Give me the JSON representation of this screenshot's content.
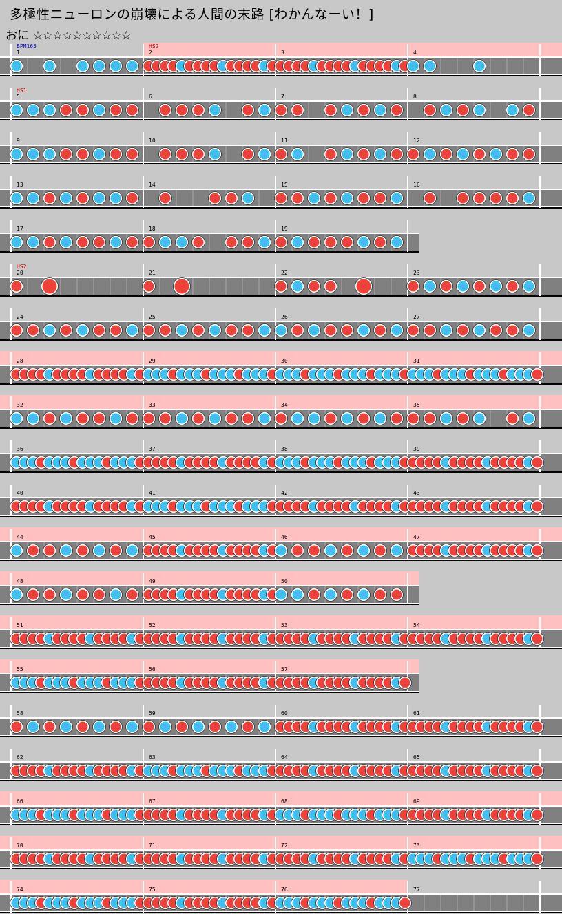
{
  "song": {
    "title": "多極性ニューロンの崩壊による人間の末路 [わかんなーい！]",
    "course": "おに",
    "stars": "☆☆☆☆☆☆☆☆☆☆"
  },
  "colors": {
    "background": "#c8c8c8",
    "lane": "#808080",
    "gogo": "#ffc0c0",
    "don": "#f0403a",
    "ka": "#40c0f0",
    "barline": "#ffffff",
    "bpm_label": "#0000c0",
    "hs_label": "#c00000"
  },
  "chart_data": {
    "type": "taiko-score",
    "rows": [
      {
        "measures": [
          1,
          2,
          3,
          4
        ],
        "gogo": [
          1,
          2,
          3
        ],
        "labels": [
          {
            "m": 0,
            "t": "BPM165",
            "k": "bpm"
          },
          {
            "m": 1,
            "t": "HS2",
            "k": "hs"
          }
        ],
        "notes": [
          [
            "k",
            "",
            "k",
            "",
            "k",
            "k",
            "k",
            "k"
          ],
          [
            "d16"
          ],
          [
            "d16"
          ],
          [
            "k16",
            "k",
            "_",
            "_",
            "k",
            "_",
            "_",
            "_"
          ]
        ]
      },
      {
        "measures": [
          5,
          6,
          7,
          8
        ],
        "gogo": [],
        "labels": [
          {
            "m": 0,
            "t": "HS1",
            "k": "hs"
          }
        ],
        "notes": [
          [
            "k",
            "k",
            "k",
            "d",
            "d",
            "k",
            "d",
            "d"
          ],
          [
            "",
            "d",
            "d",
            "d",
            "k",
            "",
            "d",
            "k"
          ],
          [
            "d",
            "d",
            "",
            "d",
            "k",
            "d",
            "k",
            "d"
          ],
          [
            "",
            "d",
            "k",
            "d",
            "k",
            "",
            "k",
            "d"
          ]
        ]
      },
      {
        "measures": [
          9,
          10,
          11,
          12
        ],
        "gogo": [],
        "labels": [],
        "notes": [
          [
            "k",
            "k",
            "k",
            "d",
            "d",
            "k",
            "d",
            "d"
          ],
          [
            "",
            "d",
            "d",
            "d",
            "k",
            "",
            "d",
            "k"
          ],
          [
            "d",
            "k",
            "",
            "d",
            "k",
            "d",
            "k",
            "d"
          ],
          [
            "d",
            "k",
            "d",
            "k",
            "d",
            "k",
            "d",
            "d"
          ]
        ]
      },
      {
        "measures": [
          13,
          14,
          15,
          16
        ],
        "gogo": [],
        "labels": [],
        "notes": [
          [
            "k",
            "k",
            "d",
            "k",
            "d",
            "k",
            "k",
            "d"
          ],
          [
            "",
            "d",
            "",
            "",
            "d",
            "d",
            "k",
            ""
          ],
          [
            "d",
            "d",
            "k",
            "d",
            "k",
            "d",
            "d",
            "k"
          ],
          [
            "",
            "d",
            "",
            "d",
            "d",
            "d",
            "d",
            "k"
          ]
        ]
      },
      {
        "measures": [
          17,
          18,
          19
        ],
        "gogo": [],
        "labels": [],
        "notes": [
          [
            "k",
            "k",
            "d",
            "k",
            "d",
            "d",
            "k",
            "d"
          ],
          [
            "d",
            "k",
            "k",
            "d",
            "",
            "d",
            "d",
            "k"
          ],
          [
            "d",
            "k",
            "d",
            "d",
            "d",
            "k",
            "d",
            "k"
          ]
        ]
      },
      {
        "measures": [
          20,
          21,
          22,
          23
        ],
        "gogo": [],
        "labels": [
          {
            "m": 0,
            "t": "HS2",
            "k": "hs"
          }
        ],
        "notes": [
          [
            "d",
            "",
            "D",
            "",
            "",
            "",
            "",
            ""
          ],
          [
            "d",
            "",
            "D",
            "",
            "",
            "",
            "",
            ""
          ],
          [
            "d",
            "k",
            "d",
            "d",
            "",
            "D",
            "",
            ""
          ],
          [
            "d",
            "k",
            "d",
            "k",
            "d",
            "k",
            "d",
            "k"
          ]
        ]
      },
      {
        "measures": [
          24,
          25,
          26,
          27
        ],
        "gogo": [],
        "labels": [],
        "notes": [
          [
            "d",
            "d",
            "k",
            "d",
            "k",
            "d",
            "d",
            "k"
          ],
          [
            "d",
            "d",
            "k",
            "d",
            "k",
            "d",
            "d",
            "k"
          ],
          [
            "k",
            "d",
            "k",
            "d",
            "d",
            "k",
            "d",
            "k"
          ],
          [
            "d",
            "d",
            "k",
            "d",
            "k",
            "d",
            "d",
            "k"
          ]
        ]
      },
      {
        "measures": [
          28,
          29,
          30,
          31
        ],
        "gogo": [
          0,
          1,
          2,
          3
        ],
        "labels": [],
        "notes": [
          [
            "d16"
          ],
          [
            "k16"
          ],
          [
            "k16"
          ],
          [
            "k16"
          ]
        ]
      },
      {
        "measures": [
          32,
          33,
          34,
          35
        ],
        "gogo": [
          0,
          1,
          2,
          3
        ],
        "labels": [],
        "notes": [
          [
            "k",
            "k",
            "d",
            "k",
            "d",
            "d",
            "k",
            "d"
          ],
          [
            "d",
            "d",
            "k",
            "d",
            "k",
            "d",
            "d",
            "k"
          ],
          [
            "d",
            "k",
            "k",
            "d",
            "k",
            "d",
            "k",
            "d"
          ],
          [
            "d",
            "d",
            "k",
            "d",
            "k",
            "",
            "d",
            "k"
          ]
        ]
      },
      {
        "measures": [
          36,
          37,
          38,
          39
        ],
        "gogo": [],
        "labels": [],
        "notes": [
          [
            "k16"
          ],
          [
            "d16"
          ],
          [
            "k16"
          ],
          [
            "d16"
          ]
        ]
      },
      {
        "measures": [
          40,
          41,
          42,
          43
        ],
        "gogo": [],
        "labels": [],
        "notes": [
          [
            "d16"
          ],
          [
            "k16"
          ],
          [
            "d16"
          ],
          [
            "d16"
          ]
        ]
      },
      {
        "measures": [
          44,
          45,
          46,
          47
        ],
        "gogo": [
          0,
          1,
          2,
          3
        ],
        "labels": [],
        "notes": [
          [
            "k",
            "d",
            "d",
            "k",
            "d",
            "k",
            "d",
            "k"
          ],
          [
            "d16"
          ],
          [
            "k",
            "d",
            "d",
            "k",
            "d",
            "k",
            "d",
            "k"
          ],
          [
            "d16"
          ]
        ]
      },
      {
        "measures": [
          48,
          49,
          50
        ],
        "gogo": [
          0,
          1,
          2
        ],
        "labels": [],
        "notes": [
          [
            "k",
            "d",
            "d",
            "k",
            "d",
            "d",
            "k",
            "d"
          ],
          [
            "d16"
          ],
          [
            "k",
            "k",
            "d",
            "k",
            "d",
            "k",
            "d",
            "d"
          ]
        ]
      },
      {
        "measures": [
          51,
          52,
          53,
          54
        ],
        "gogo": [
          0,
          1,
          2,
          3
        ],
        "labels": [],
        "notes": [
          [
            "d16"
          ],
          [
            "d16"
          ],
          [
            "d16"
          ],
          [
            "d16"
          ]
        ]
      },
      {
        "measures": [
          55,
          56,
          57
        ],
        "gogo": [
          0,
          1,
          2
        ],
        "labels": [],
        "notes": [
          [
            "k16"
          ],
          [
            "d16"
          ],
          [
            "d16"
          ]
        ]
      },
      {
        "measures": [
          58,
          59,
          60,
          61
        ],
        "gogo": [],
        "labels": [],
        "notes": [
          [
            "d",
            "k",
            "d",
            "k",
            "d",
            "k",
            "d",
            "k"
          ],
          [
            "d",
            "k",
            "d",
            "k",
            "d",
            "k",
            "d",
            "k"
          ],
          [
            "d16"
          ],
          [
            "d16"
          ]
        ]
      },
      {
        "measures": [
          62,
          63,
          64,
          65
        ],
        "gogo": [],
        "labels": [],
        "notes": [
          [
            "d16"
          ],
          [
            "k16"
          ],
          [
            "d16"
          ],
          [
            "d16"
          ]
        ]
      },
      {
        "measures": [
          66,
          67,
          68,
          69
        ],
        "gogo": [
          0,
          1,
          2,
          3
        ],
        "labels": [],
        "notes": [
          [
            "k16"
          ],
          [
            "d16"
          ],
          [
            "k16"
          ],
          [
            "d16"
          ]
        ]
      },
      {
        "measures": [
          70,
          71,
          72,
          73
        ],
        "gogo": [
          0,
          1,
          2,
          3
        ],
        "labels": [],
        "notes": [
          [
            "d16"
          ],
          [
            "d16"
          ],
          [
            "d16"
          ],
          [
            "k16"
          ]
        ]
      },
      {
        "measures": [
          74,
          75,
          76,
          77
        ],
        "gogo": [
          0,
          1,
          2
        ],
        "labels": [],
        "notes": [
          [
            "k16"
          ],
          [
            "d16"
          ],
          [
            "k16"
          ],
          []
        ]
      }
    ]
  }
}
